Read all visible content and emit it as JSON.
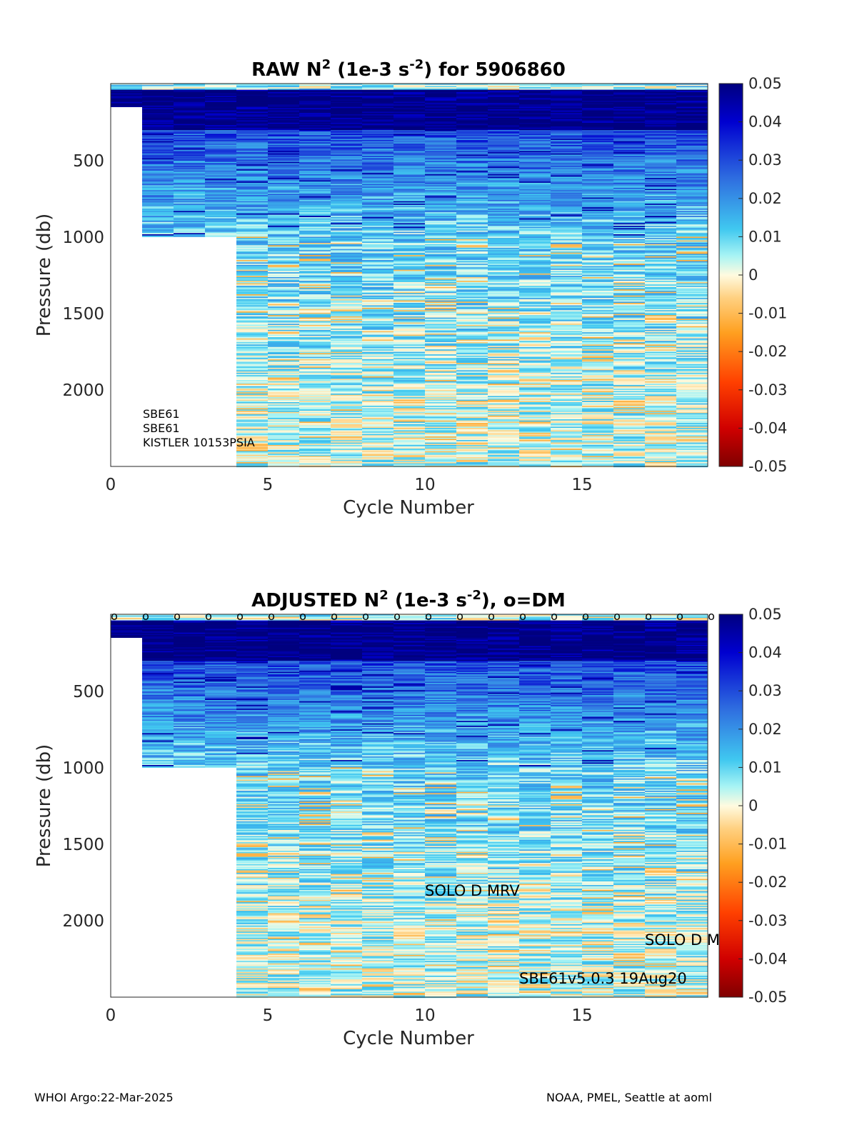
{
  "panels": [
    {
      "title_main": "RAW N",
      "title_sup1": "2",
      "title_mid": " (1e-3 s",
      "title_sup2": "-2",
      "title_end": ") for 5906860",
      "instrument_notes": [
        "SBE61",
        "SBE61",
        "KISTLER 10153PSIA"
      ],
      "annotations": []
    },
    {
      "title_main": "ADJUSTED N",
      "title_sup1": "2",
      "title_mid": " (1e-3 s",
      "title_sup2": "-2",
      "title_end": "), o=DM",
      "instrument_notes": [],
      "annotations": [
        "SOLO D MRV",
        "SOLO D M",
        "SBE61v5.0.3 19Aug20"
      ]
    }
  ],
  "axes": {
    "xlabel": "Cycle Number",
    "ylabel": "Pressure (db)",
    "xticks": [
      "0",
      "5",
      "10",
      "15"
    ],
    "yticks": [
      "500",
      "1000",
      "1500",
      "2000"
    ],
    "colorbar_ticks": [
      "0.05",
      "0.04",
      "0.03",
      "0.02",
      "0.01",
      "0",
      "-0.01",
      "-0.02",
      "-0.03",
      "-0.04",
      "-0.05"
    ]
  },
  "dm_marker": "o",
  "footer": {
    "left": "WHOI Argo:22-Mar-2025",
    "right": "NOAA, PMEL, Seattle at aoml"
  },
  "chart_data": [
    {
      "type": "heatmap",
      "title": "RAW N2 (1e-3 s-2) for 5906860",
      "xlabel": "Cycle Number",
      "ylabel": "Pressure (db)",
      "xlim": [
        0,
        19
      ],
      "ylim": [
        2500,
        0
      ],
      "y_reversed": true,
      "clim": [
        -0.05,
        0.05
      ],
      "colormap": "jet-like: dark red (-0.05) → orange → pale yellow (0) → cyan (0.01) → blue → navy (0.05)",
      "cycles": [
        1,
        2,
        3,
        4,
        5,
        6,
        7,
        8,
        9,
        10,
        11,
        12,
        13,
        14,
        15,
        16,
        17,
        18,
        19
      ],
      "cycle_max_pressure_db": [
        1000,
        1000,
        1000,
        2500,
        2500,
        2500,
        2500,
        2500,
        2500,
        2500,
        2500,
        2500,
        2500,
        2500,
        2500,
        2500,
        2500,
        2500,
        2500
      ],
      "cycle_0_max_pressure_db": 150,
      "description_of_values": "N2 near 0.05 in upper ~150-300 db, ~0.01-0.03 from 300-1000 db, ~0.005-0.01 below 1000 db, near 0 below 2000 db"
    },
    {
      "type": "heatmap",
      "title": "ADJUSTED N2 (1e-3 s-2), o=DM",
      "xlabel": "Cycle Number",
      "ylabel": "Pressure (db)",
      "xlim": [
        0,
        19
      ],
      "ylim": [
        2500,
        0
      ],
      "y_reversed": true,
      "clim": [
        -0.05,
        0.05
      ],
      "cycles": [
        1,
        2,
        3,
        4,
        5,
        6,
        7,
        8,
        9,
        10,
        11,
        12,
        13,
        14,
        15,
        16,
        17,
        18,
        19
      ],
      "cycle_max_pressure_db": [
        1000,
        1000,
        1000,
        2500,
        2500,
        2500,
        2500,
        2500,
        2500,
        2500,
        2500,
        2500,
        2500,
        2500,
        2500,
        2500,
        2500,
        2500,
        2500
      ],
      "cycle_0_max_pressure_db": 150,
      "dm_cycles": [
        0,
        1,
        2,
        3,
        4,
        5,
        6,
        7,
        8,
        9,
        10,
        11,
        12,
        13,
        14,
        15,
        16,
        17,
        18,
        19
      ]
    }
  ]
}
